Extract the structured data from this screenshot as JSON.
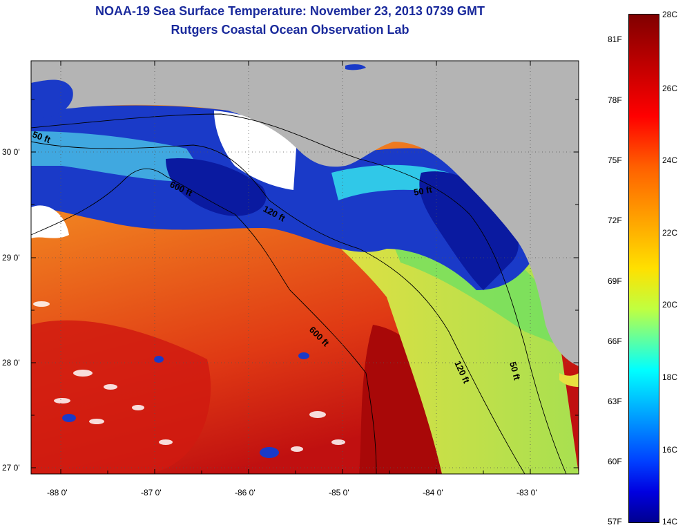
{
  "header": {
    "title": "NOAA-19 Sea Surface Temperature:  November 23, 2013 0739 GMT",
    "subtitle": "Rutgers Coastal Ocean Observation Lab"
  },
  "map": {
    "lat_labels": [
      "30 0'",
      "29 0'",
      "28 0'",
      "27 0'"
    ],
    "lon_labels": [
      "-88 0'",
      "-87 0'",
      "-86 0'",
      "-85 0'",
      "-84 0'",
      "-83 0'"
    ],
    "contour_labels": [
      "50 ft",
      "600 ft",
      "120 ft",
      "50 ft",
      "600 ft",
      "120 ft",
      "50 ft"
    ],
    "colors": {
      "land": "#b4b4b4",
      "no_data": "#ffffff",
      "warm": "#c81010",
      "cool": "#0a1aa0"
    }
  },
  "colorbar": {
    "fahrenheit": [
      "81F",
      "78F",
      "75F",
      "72F",
      "69F",
      "66F",
      "63F",
      "60F",
      "57F"
    ],
    "celsius": [
      "28C",
      "26C",
      "24C",
      "22C",
      "20C",
      "18C",
      "16C",
      "14C"
    ]
  }
}
